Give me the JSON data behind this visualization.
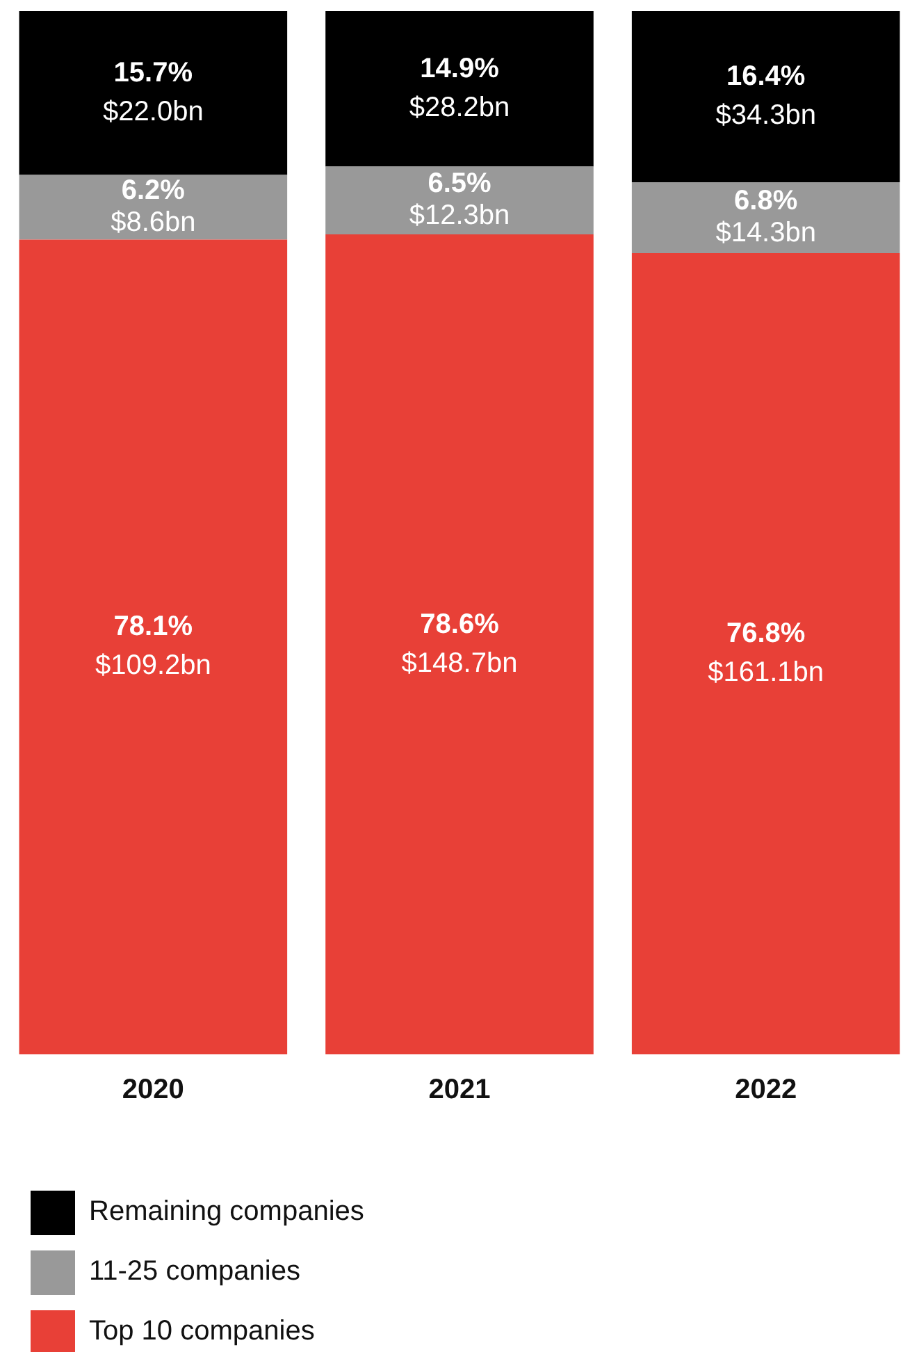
{
  "chart_data": {
    "type": "bar",
    "stacked": true,
    "categories": [
      "2020",
      "2021",
      "2022"
    ],
    "ylim": [
      0,
      100
    ],
    "tick_labels": "x",
    "grid": false,
    "legend": "bottom left",
    "series": [
      {
        "name": "Top 10 companies",
        "color": "#e84037",
        "values": [
          78.1,
          78.6,
          76.8
        ],
        "value_labels": [
          "78.1%\n$109.2bn",
          "78.6%\n$148.7bn",
          "76.8%\n$161.1bn"
        ]
      },
      {
        "name": "11-25 companies",
        "color": "#999999",
        "values": [
          6.2,
          6.5,
          6.8
        ],
        "value_labels": [
          "6.2%\n$8.6bn",
          "6.5%\n$12.3bn",
          "6.8%\n$14.3bn"
        ]
      },
      {
        "name": "Remaining companies",
        "color": "#000000",
        "values": [
          15.7,
          14.9,
          16.4
        ],
        "value_labels": [
          "15.7%\n$22.0bn",
          "14.9%\n$28.2bn",
          "16.4%\n$34.3bn"
        ]
      }
    ]
  }
}
